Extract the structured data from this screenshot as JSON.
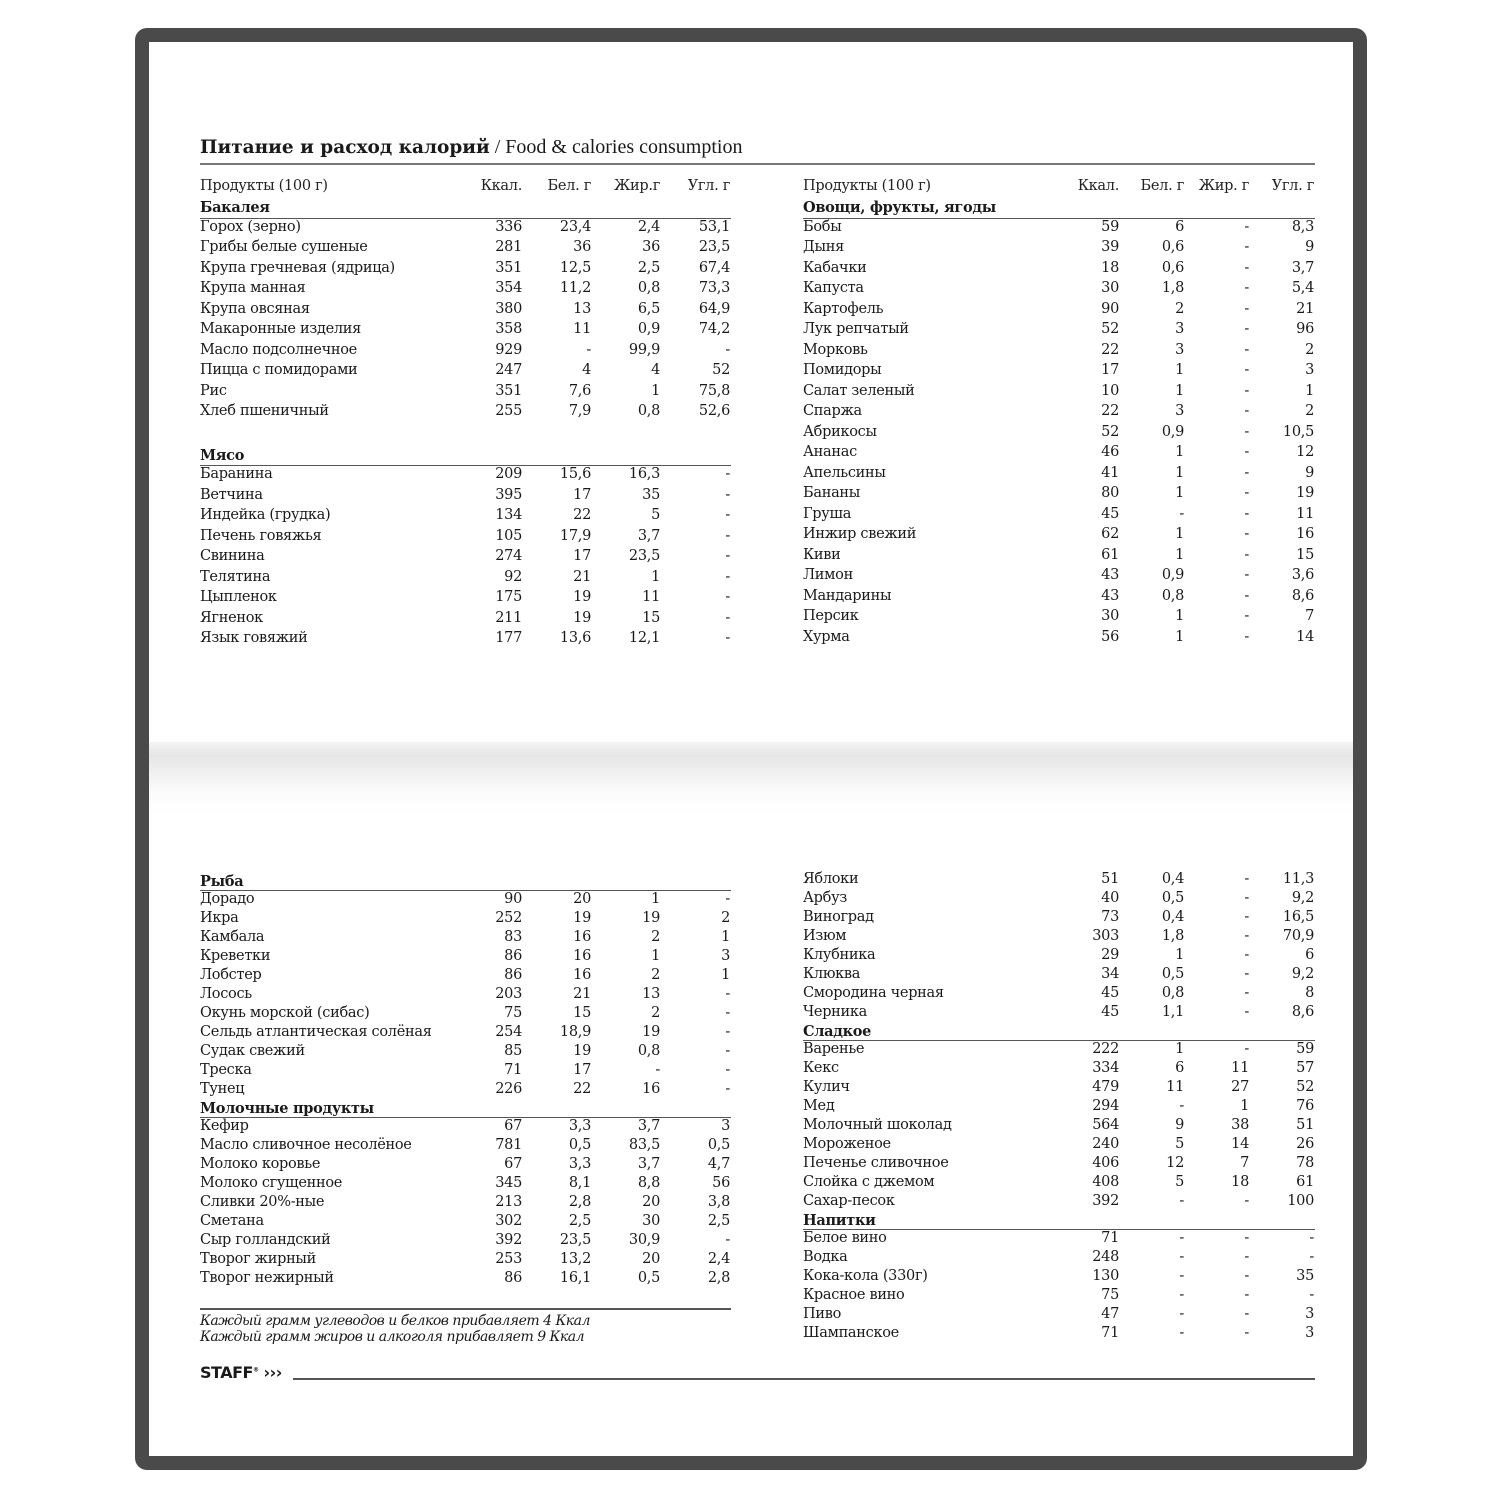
{
  "title": {
    "ru": "Питание и расход калорий",
    "en": "/ Food & calories consumption"
  },
  "columns": [
    "Продукты (100 г)",
    "Ккал.",
    "Бел. г",
    "Жир.г",
    "Угл. г"
  ],
  "columns_right": [
    "Продукты (100 г)",
    "Ккал.",
    "Бел. г",
    "Жир. г",
    "Угл. г"
  ],
  "sections": [
    {
      "name": "Бакалея",
      "rows": [
        [
          "Горох (зерно)",
          "336",
          "23,4",
          "2,4",
          "53,1"
        ],
        [
          "Грибы белые сушеные",
          "281",
          "36",
          "36",
          "23,5"
        ],
        [
          "Крупа гречневая (ядрица)",
          "351",
          "12,5",
          "2,5",
          "67,4"
        ],
        [
          "Крупа манная",
          "354",
          "11,2",
          "0,8",
          "73,3"
        ],
        [
          "Крупа овсяная",
          "380",
          "13",
          "6,5",
          "64,9"
        ],
        [
          "Макаронные изделия",
          "358",
          "11",
          "0,9",
          "74,2"
        ],
        [
          "Масло подсолнечное",
          "929",
          "-",
          "99,9",
          "-"
        ],
        [
          "Пицца с помидорами",
          "247",
          "4",
          "4",
          "52"
        ],
        [
          "Рис",
          "351",
          "7,6",
          "1",
          "75,8"
        ],
        [
          "Хлеб пшеничный",
          "255",
          "7,9",
          "0,8",
          "52,6"
        ]
      ]
    },
    {
      "name": "Мясо",
      "rows": [
        [
          "Баранина",
          "209",
          "15,6",
          "16,3",
          "-"
        ],
        [
          "Ветчина",
          "395",
          "17",
          "35",
          "-"
        ],
        [
          "Индейка (грудка)",
          "134",
          "22",
          "5",
          "-"
        ],
        [
          "Печень говяжья",
          "105",
          "17,9",
          "3,7",
          "-"
        ],
        [
          "Свинина",
          "274",
          "17",
          "23,5",
          "-"
        ],
        [
          "Телятина",
          "92",
          "21",
          "1",
          "-"
        ],
        [
          "Цыпленок",
          "175",
          "19",
          "11",
          "-"
        ],
        [
          "Ягненок",
          "211",
          "19",
          "15",
          "-"
        ],
        [
          "Язык говяжий",
          "177",
          "13,6",
          "12,1",
          "-"
        ]
      ]
    },
    {
      "name": "Овощи, фрукты, ягоды",
      "rows": [
        [
          "Бобы",
          "59",
          "6",
          "-",
          "8,3"
        ],
        [
          "Дыня",
          "39",
          "0,6",
          "-",
          "9"
        ],
        [
          "Кабачки",
          "18",
          "0,6",
          "-",
          "3,7"
        ],
        [
          "Капуста",
          "30",
          "1,8",
          "-",
          "5,4"
        ],
        [
          "Картофель",
          "90",
          "2",
          "-",
          "21"
        ],
        [
          "Лук репчатый",
          "52",
          "3",
          "-",
          "96"
        ],
        [
          "Морковь",
          "22",
          "3",
          "-",
          "2"
        ],
        [
          "Помидоры",
          "17",
          "1",
          "-",
          "3"
        ],
        [
          "Салат зеленый",
          "10",
          "1",
          "-",
          "1"
        ],
        [
          "Спаржа",
          "22",
          "3",
          "-",
          "2"
        ],
        [
          "Абрикосы",
          "52",
          "0,9",
          "-",
          "10,5"
        ],
        [
          "Ананас",
          "46",
          "1",
          "-",
          "12"
        ],
        [
          "Апельсины",
          "41",
          "1",
          "-",
          "9"
        ],
        [
          "Бананы",
          "80",
          "1",
          "-",
          "19"
        ],
        [
          "Груша",
          "45",
          "-",
          "-",
          "11"
        ],
        [
          "Инжир свежий",
          "62",
          "1",
          "-",
          "16"
        ],
        [
          "Киви",
          "61",
          "1",
          "-",
          "15"
        ],
        [
          "Лимон",
          "43",
          "0,9",
          "-",
          "3,6"
        ],
        [
          "Мандарины",
          "43",
          "0,8",
          "-",
          "8,6"
        ],
        [
          "Персик",
          "30",
          "1",
          "-",
          "7"
        ],
        [
          "Хурма",
          "56",
          "1",
          "-",
          "14"
        ]
      ]
    },
    {
      "name": "Рыба",
      "rows": [
        [
          "Дорадо",
          "90",
          "20",
          "1",
          "-"
        ],
        [
          "Икра",
          "252",
          "19",
          "19",
          "2"
        ],
        [
          "Камбала",
          "83",
          "16",
          "2",
          "1"
        ],
        [
          "Креветки",
          "86",
          "16",
          "1",
          "3"
        ],
        [
          "Лобстер",
          "86",
          "16",
          "2",
          "1"
        ],
        [
          "Лосось",
          "203",
          "21",
          "13",
          "-"
        ],
        [
          "Окунь морской (сибас)",
          "75",
          "15",
          "2",
          "-"
        ],
        [
          "Сельдь атлантическая солёная",
          "254",
          "18,9",
          "19",
          "-"
        ],
        [
          "Судак свежий",
          "85",
          "19",
          "0,8",
          "-"
        ],
        [
          "Треска",
          "71",
          "17",
          "-",
          "-"
        ],
        [
          "Тунец",
          "226",
          "22",
          "16",
          "-"
        ]
      ]
    },
    {
      "name": "Молочные продукты",
      "rows": [
        [
          "Кефир",
          "67",
          "3,3",
          "3,7",
          "3"
        ],
        [
          "Масло сливочное несолёное",
          "781",
          "0,5",
          "83,5",
          "0,5"
        ],
        [
          "Молоко коровье",
          "67",
          "3,3",
          "3,7",
          "4,7"
        ],
        [
          "Молоко сгущенное",
          "345",
          "8,1",
          "8,8",
          "56"
        ],
        [
          "Сливки 20%-ные",
          "213",
          "2,8",
          "20",
          "3,8"
        ],
        [
          "Сметана",
          "302",
          "2,5",
          "30",
          "2,5"
        ],
        [
          "Сыр голландский",
          "392",
          "23,5",
          "30,9",
          "-"
        ],
        [
          "Творог жирный",
          "253",
          "13,2",
          "20",
          "2,4"
        ],
        [
          "Творог нежирный",
          "86",
          "16,1",
          "0,5",
          "2,8"
        ]
      ]
    },
    {
      "name": "",
      "rows": [
        [
          "Яблоки",
          "51",
          "0,4",
          "-",
          "11,3"
        ],
        [
          "Арбуз",
          "40",
          "0,5",
          "-",
          "9,2"
        ],
        [
          "Виноград",
          "73",
          "0,4",
          "-",
          "16,5"
        ],
        [
          "Изюм",
          "303",
          "1,8",
          "-",
          "70,9"
        ],
        [
          "Клубника",
          "29",
          "1",
          "-",
          "6"
        ],
        [
          "Клюква",
          "34",
          "0,5",
          "-",
          "9,2"
        ],
        [
          "Смородина черная",
          "45",
          "0,8",
          "-",
          "8"
        ],
        [
          "Черника",
          "45",
          "1,1",
          "-",
          "8,6"
        ]
      ]
    },
    {
      "name": "Сладкое",
      "rows": [
        [
          "Варенье",
          "222",
          "1",
          "-",
          "59"
        ],
        [
          "Кекс",
          "334",
          "6",
          "11",
          "57"
        ],
        [
          "Кулич",
          "479",
          "11",
          "27",
          "52"
        ],
        [
          "Мед",
          "294",
          "-",
          "1",
          "76"
        ],
        [
          "Молочный шоколад",
          "564",
          "9",
          "38",
          "51"
        ],
        [
          "Мороженое",
          "240",
          "5",
          "14",
          "26"
        ],
        [
          "Печенье сливочное",
          "406",
          "12",
          "7",
          "78"
        ],
        [
          "Слойка с джемом",
          "408",
          "5",
          "18",
          "61"
        ],
        [
          "Сахар-песок",
          "392",
          "-",
          "-",
          "100"
        ]
      ]
    },
    {
      "name": "Напитки",
      "rows": [
        [
          "Белое вино",
          "71",
          "-",
          "-",
          "-"
        ],
        [
          "Водка",
          "248",
          "-",
          "-",
          "-"
        ],
        [
          "Кока-кола (330г)",
          "130",
          "-",
          "-",
          "35"
        ],
        [
          "Красное вино",
          "75",
          "-",
          "-",
          "-"
        ],
        [
          "Пиво",
          "47",
          "-",
          "-",
          "3"
        ],
        [
          "Шампанское",
          "71",
          "-",
          "-",
          "3"
        ]
      ]
    }
  ],
  "notes": [
    "Каждый грамм углеводов и белков прибавляет 4 Ккал",
    "Каждый грамм жиров и алкоголя прибавляет 9 Ккал"
  ],
  "logo": "STAFF"
}
